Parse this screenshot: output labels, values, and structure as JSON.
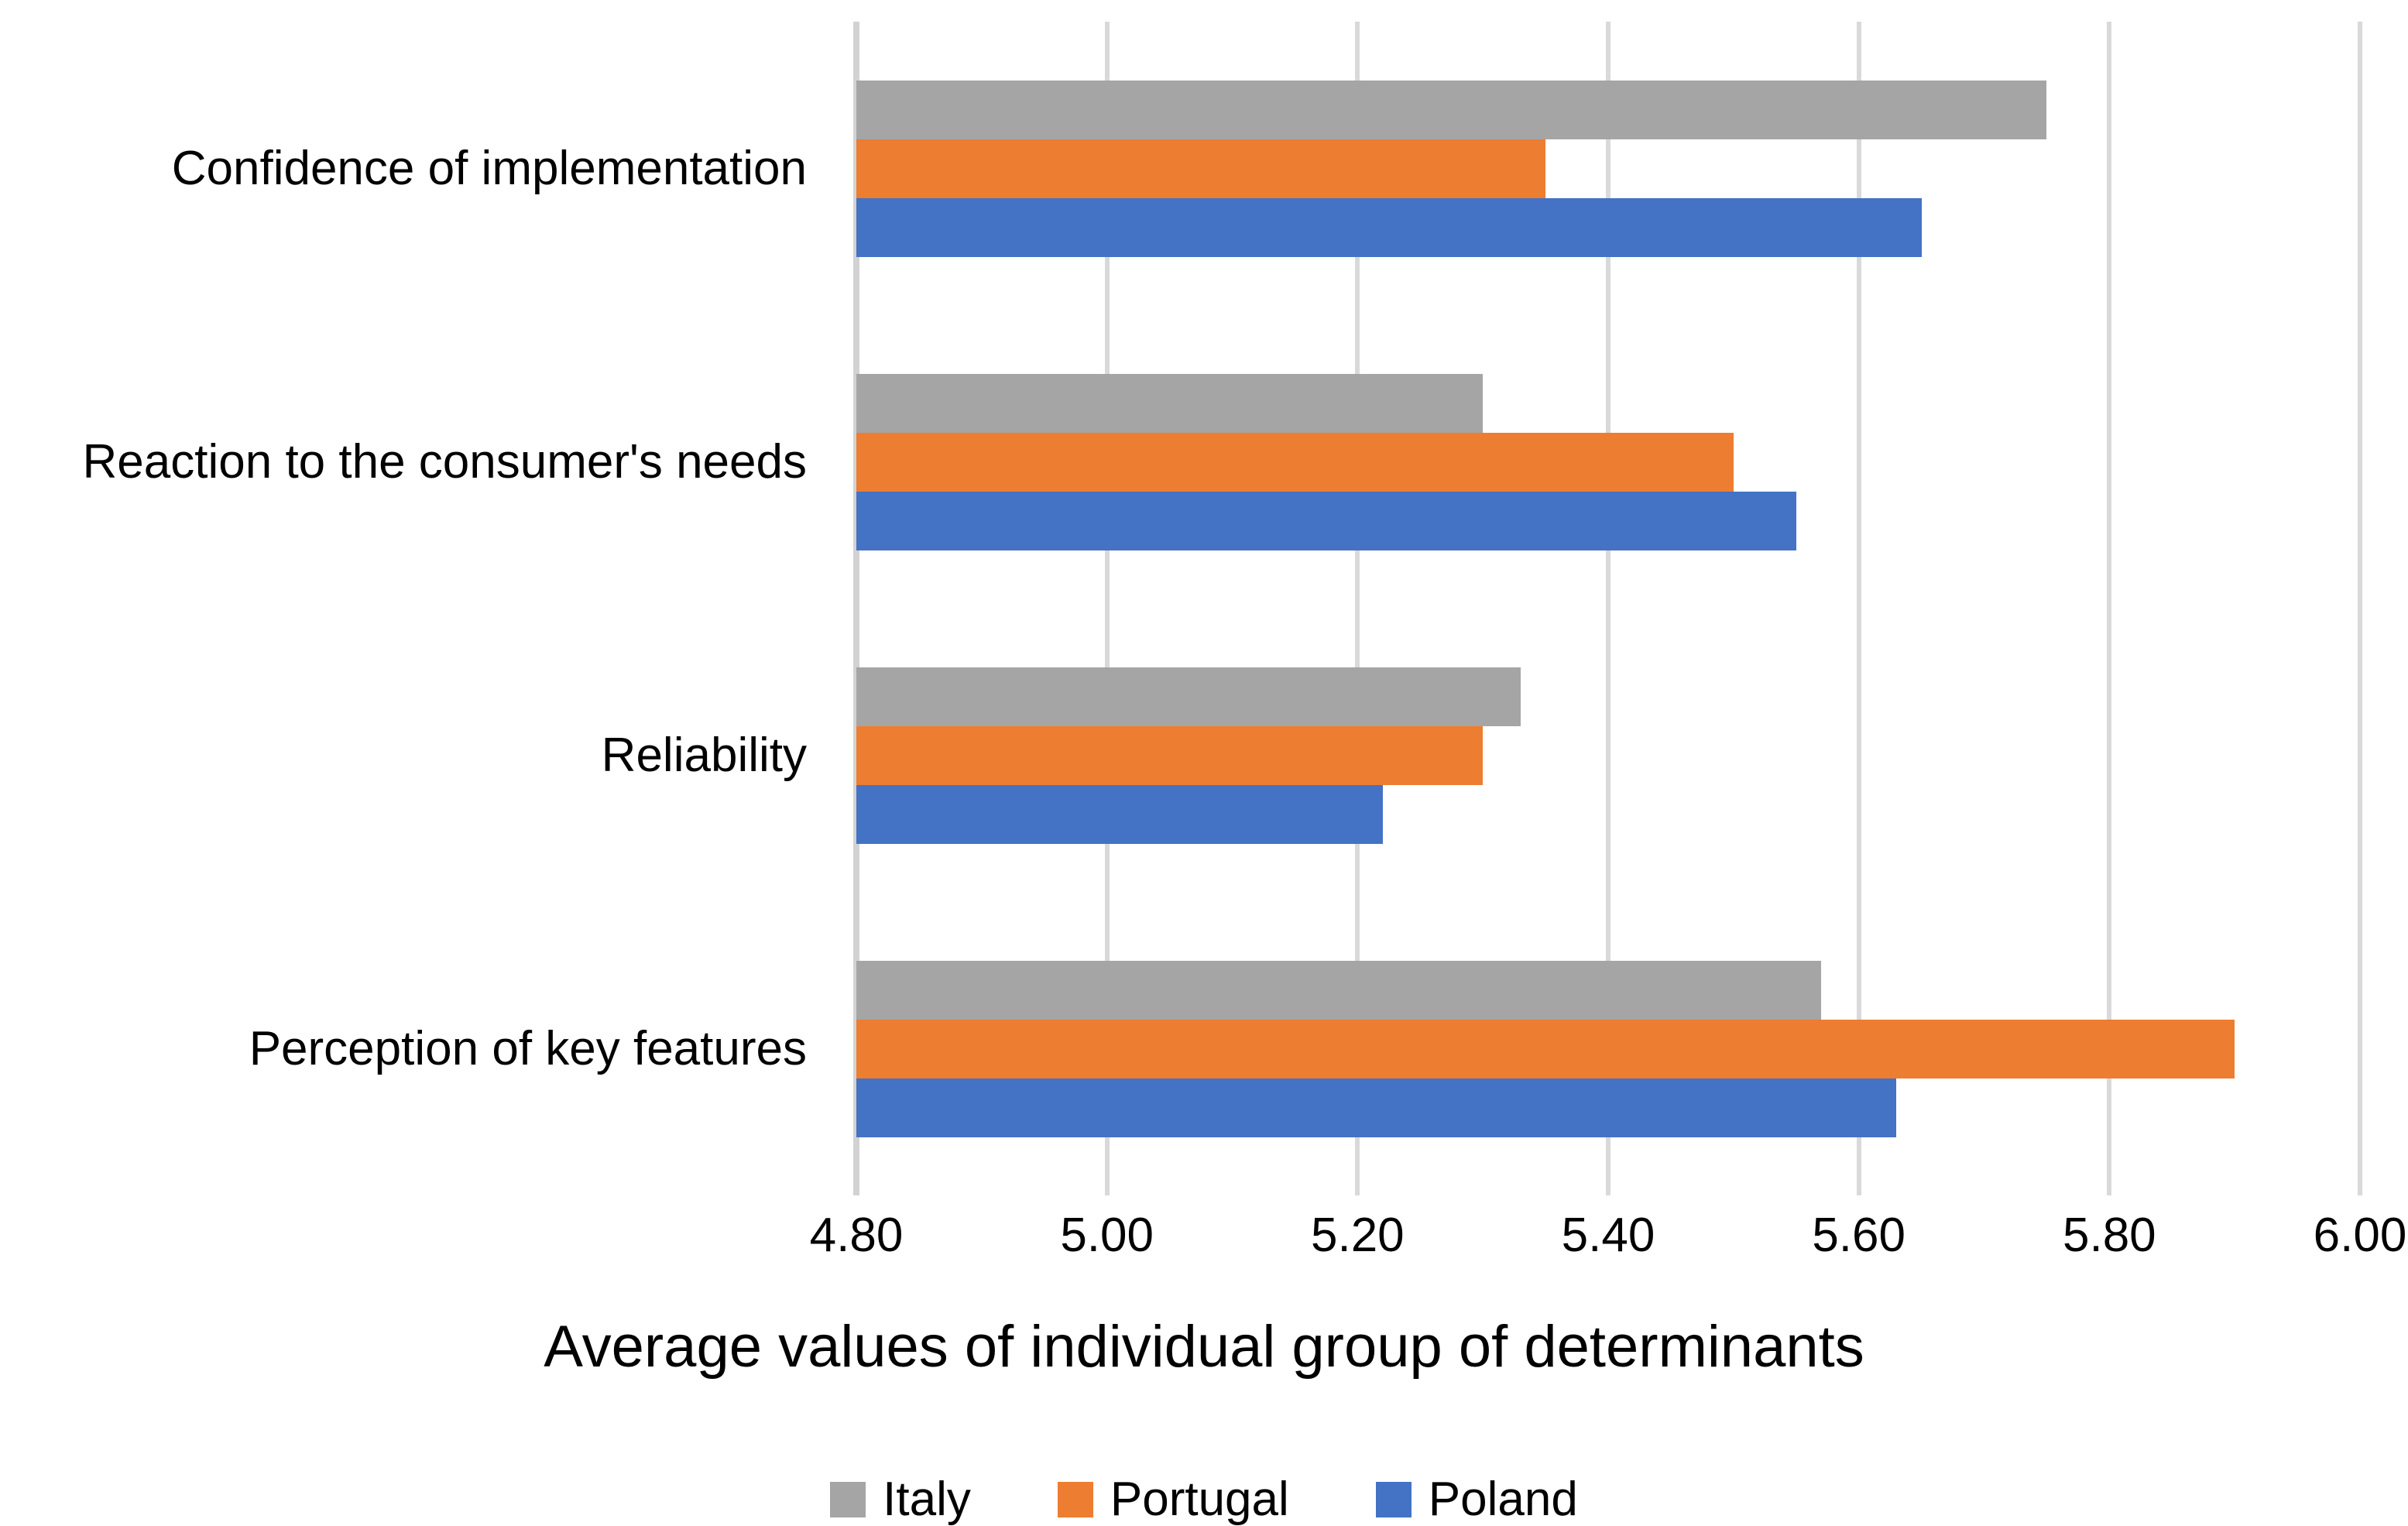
{
  "chart_data": {
    "type": "bar",
    "orientation": "horizontal",
    "title": "",
    "xlabel": "Average values of individual group of determinants",
    "ylabel": "",
    "categories": [
      "Confidence of implementation",
      "Reaction to the consumer's needs",
      "Reliability",
      "Perception of key features"
    ],
    "series": [
      {
        "name": "Italy",
        "color": "#A5A5A5",
        "values": [
          5.75,
          5.3,
          5.33,
          5.57
        ]
      },
      {
        "name": "Portugal",
        "color": "#ED7D31",
        "values": [
          5.35,
          5.5,
          5.3,
          5.9
        ]
      },
      {
        "name": "Poland",
        "color": "#4472C4",
        "values": [
          5.65,
          5.55,
          5.22,
          5.63
        ]
      }
    ],
    "xlim": [
      4.8,
      6.0
    ],
    "xticks": [
      "4.80",
      "5.00",
      "5.20",
      "5.40",
      "5.60",
      "5.80",
      "6.00"
    ],
    "grid": "vertical",
    "gridline_color": "#D9D9D9",
    "axis_line_color": "#D2D2D2",
    "text_color": "#000000",
    "legend_position": "bottom"
  }
}
